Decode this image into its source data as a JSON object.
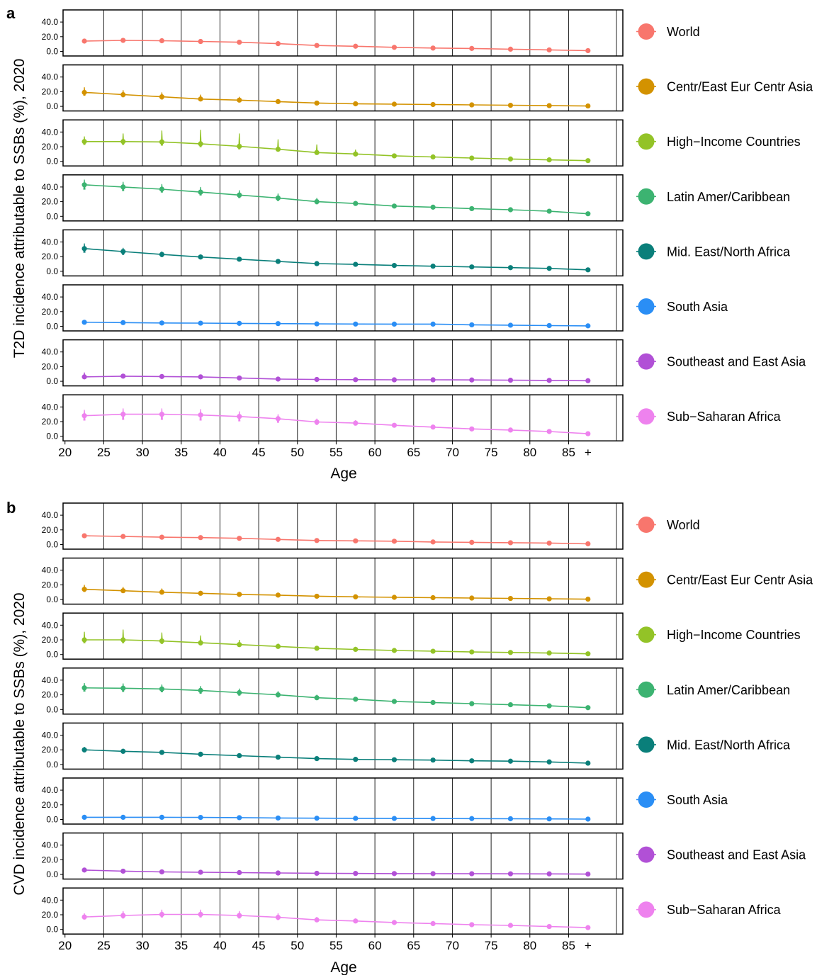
{
  "figure": {
    "panels": [
      "a",
      "b"
    ]
  },
  "colors": {
    "World": "#F8766D",
    "Centr/East Eur Centr Asia": "#D39200",
    "High-Income Countries": "#93C327",
    "Latin Amer/Caribbean": "#3CB371",
    "Mid. East/North Africa": "#0A7F7A",
    "South Asia": "#2A8EF5",
    "Southeast and East Asia": "#B150D6",
    "Sub-Saharan Africa": "#EE82EE"
  },
  "chart_data": [
    {
      "type": "line",
      "panel": "a",
      "ylabel": "T2D  incidence attributable to SSBs (%), 2020",
      "xlabel": "Age",
      "xticks": [
        "20",
        "25",
        "30",
        "35",
        "40",
        "45",
        "50",
        "55",
        "60",
        "65",
        "70",
        "75",
        "80",
        "85",
        "+"
      ],
      "yticks": [
        "0.0",
        "20.0",
        "40.0"
      ],
      "ylim": [
        0,
        50
      ],
      "x": [
        22.5,
        27.5,
        32.5,
        37.5,
        42.5,
        47.5,
        52.5,
        57.5,
        62.5,
        67.5,
        72.5,
        77.5,
        82.5,
        87.5
      ],
      "series": [
        {
          "name": "World",
          "values": [
            14,
            15,
            14.5,
            13.5,
            12.5,
            10.5,
            8,
            7,
            5.5,
            4.5,
            4,
            3,
            2,
            1
          ],
          "upper": [
            15.5,
            16.5,
            16,
            15,
            14,
            12,
            9.5,
            8,
            6.5,
            5.5,
            4.8,
            3.8,
            2.8,
            1.6
          ],
          "lower": [
            12.5,
            13.5,
            13,
            12,
            11,
            9,
            6.8,
            6,
            4.6,
            3.7,
            3.2,
            2.4,
            1.4,
            0.6
          ]
        },
        {
          "name": "Centr/East Eur Centr Asia",
          "values": [
            19,
            16,
            13,
            10,
            8.5,
            6.5,
            4.5,
            3.5,
            3,
            2.5,
            2,
            1.5,
            1,
            0.5
          ],
          "upper": [
            26,
            22,
            19,
            16,
            13,
            9,
            6,
            5,
            4,
            3.2,
            2.6,
            2,
            1.5,
            0.8
          ],
          "lower": [
            15,
            13,
            10,
            8,
            6.5,
            5,
            3.5,
            2.8,
            2.4,
            2,
            1.5,
            1.1,
            0.6,
            0.2
          ]
        },
        {
          "name": "High-Income Countries",
          "values": [
            27,
            27,
            26.5,
            24,
            20.5,
            16.5,
            12,
            10,
            7.5,
            6,
            4.5,
            3.2,
            2,
            1
          ],
          "upper": [
            34,
            38,
            42,
            43,
            38,
            30,
            23,
            16,
            10,
            8,
            6,
            4.5,
            3,
            1.6
          ],
          "lower": [
            23,
            23,
            22,
            20,
            17,
            14,
            10,
            8,
            6.2,
            5,
            3.7,
            2.6,
            1.5,
            0.6
          ]
        },
        {
          "name": "Latin Amer/Caribbean",
          "values": [
            43,
            40,
            37,
            33,
            29,
            25,
            20,
            17.5,
            14,
            12.5,
            10.5,
            9,
            7,
            3.5
          ],
          "upper": [
            50,
            47,
            44,
            40,
            35.5,
            31,
            25,
            21,
            16.5,
            14.5,
            12,
            10.5,
            8.2,
            4.5
          ],
          "lower": [
            37,
            35,
            33,
            29,
            25.5,
            21.5,
            17,
            15,
            12.2,
            11,
            9.2,
            7.8,
            6,
            2.8
          ]
        },
        {
          "name": "Mid. East/North Africa",
          "values": [
            31,
            27,
            23,
            19.5,
            16.5,
            13.5,
            10.5,
            9.5,
            8,
            7,
            6,
            5,
            4,
            2
          ],
          "upper": [
            38,
            32,
            27,
            23,
            19.5,
            16,
            12.2,
            10.8,
            9,
            7.8,
            6.8,
            5.7,
            4.6,
            2.5
          ],
          "lower": [
            26,
            23,
            20,
            17,
            14,
            11.5,
            9,
            8.3,
            7,
            6.2,
            5.3,
            4.4,
            3.4,
            1.6
          ]
        },
        {
          "name": "South Asia",
          "values": [
            5.5,
            5,
            4.5,
            4.3,
            4,
            3.7,
            3.3,
            3.1,
            3,
            3,
            2,
            1.5,
            1,
            0.6
          ],
          "upper": [
            6.5,
            6,
            5.5,
            5.2,
            4.8,
            4.4,
            4,
            3.7,
            3.6,
            3.6,
            2.5,
            1.9,
            1.3,
            0.9
          ],
          "lower": [
            4.6,
            4.2,
            3.8,
            3.6,
            3.3,
            3.1,
            2.7,
            2.6,
            2.5,
            2.5,
            1.6,
            1.1,
            0.7,
            0.4
          ]
        },
        {
          "name": "Southeast and East Asia",
          "values": [
            6,
            7,
            6.5,
            6,
            4.5,
            3,
            2.5,
            2.2,
            2,
            2,
            1.8,
            1.5,
            1.2,
            0.8
          ],
          "upper": [
            12,
            9,
            8,
            7.5,
            6,
            4.2,
            3.5,
            3,
            2.8,
            2.7,
            2.5,
            2,
            1.7,
            1.1
          ],
          "lower": [
            4,
            5.5,
            5.2,
            4.8,
            3.6,
            2.3,
            1.9,
            1.7,
            1.5,
            1.5,
            1.3,
            1.1,
            0.8,
            0.5
          ]
        },
        {
          "name": "Sub-Saharan Africa",
          "values": [
            28,
            30,
            30,
            29,
            27,
            24,
            19.5,
            18,
            15,
            12.5,
            10,
            8.5,
            6.5,
            3.5
          ],
          "upper": [
            36,
            38,
            38,
            37,
            34,
            30,
            24,
            22,
            18,
            15,
            12,
            10,
            7.7,
            4.3
          ],
          "lower": [
            22,
            23,
            23,
            22,
            21,
            19,
            16,
            15,
            12.4,
            10.4,
            8.4,
            7.1,
            5.4,
            2.8
          ]
        }
      ]
    },
    {
      "type": "line",
      "panel": "b",
      "ylabel": "CVD incidence attributable to SSBs (%), 2020",
      "xlabel": "Age",
      "xticks": [
        "20",
        "25",
        "30",
        "35",
        "40",
        "45",
        "50",
        "55",
        "60",
        "65",
        "70",
        "75",
        "80",
        "85",
        "+"
      ],
      "yticks": [
        "0.0",
        "20.0",
        "40.0"
      ],
      "ylim": [
        0,
        50
      ],
      "x": [
        22.5,
        27.5,
        32.5,
        37.5,
        42.5,
        47.5,
        52.5,
        57.5,
        62.5,
        67.5,
        72.5,
        77.5,
        82.5,
        87.5
      ],
      "series": [
        {
          "name": "World",
          "values": [
            12,
            11,
            10,
            9.5,
            8.5,
            7,
            5.5,
            5,
            4.5,
            3.5,
            3,
            2.5,
            2,
            1
          ],
          "upper": [
            13.5,
            12.5,
            11.5,
            11,
            9.8,
            8.2,
            6.5,
            5.9,
            5.3,
            4.2,
            3.6,
            3,
            2.4,
            1.3
          ],
          "lower": [
            10.8,
            9.8,
            8.8,
            8.3,
            7.4,
            6,
            4.7,
            4.3,
            3.8,
            2.9,
            2.5,
            2.1,
            1.6,
            0.7
          ]
        },
        {
          "name": "Centr/East Eur Centr Asia",
          "values": [
            14,
            12,
            10,
            8.5,
            7,
            6,
            4.5,
            3.7,
            3,
            2.5,
            2,
            1.5,
            1,
            0.5
          ],
          "upper": [
            20,
            17,
            15,
            12,
            10,
            8.5,
            6,
            4.8,
            3.8,
            3.1,
            2.5,
            1.9,
            1.3,
            0.8
          ],
          "lower": [
            11,
            9.5,
            8,
            6.8,
            5.6,
            4.8,
            3.6,
            3,
            2.4,
            2,
            1.6,
            1.1,
            0.7,
            0.2
          ]
        },
        {
          "name": "High-Income Countries",
          "values": [
            20,
            20,
            18.5,
            16,
            13.5,
            11,
            8.5,
            7,
            5.5,
            4.5,
            3.5,
            2.8,
            2,
            1
          ],
          "upper": [
            31,
            34,
            30,
            26,
            20,
            15,
            11,
            9,
            7,
            5.6,
            4.5,
            3.5,
            2.6,
            1.4
          ],
          "lower": [
            16,
            16,
            15,
            13,
            11,
            9,
            7,
            5.8,
            4.6,
            3.7,
            2.9,
            2.3,
            1.6,
            0.7
          ]
        },
        {
          "name": "Latin Amer/Caribbean",
          "values": [
            29.5,
            29,
            28,
            26,
            23,
            20,
            16,
            14,
            11,
            9.5,
            8,
            6.5,
            5,
            2.5
          ],
          "upper": [
            36,
            35.5,
            34,
            32,
            28.5,
            25,
            20,
            17,
            13.5,
            11.5,
            9.6,
            7.8,
            6,
            3.2
          ],
          "lower": [
            25,
            24.5,
            24,
            22,
            19.5,
            17,
            13.5,
            12,
            9.4,
            8.1,
            6.8,
            5.5,
            4.2,
            2
          ]
        },
        {
          "name": "Mid. East/North Africa",
          "values": [
            20,
            18,
            16.5,
            14,
            12,
            10,
            8,
            7,
            6.5,
            6,
            5,
            4.5,
            3.5,
            1.8
          ],
          "upper": [
            24,
            21.5,
            19.5,
            16.8,
            14.4,
            12,
            9.6,
            8.4,
            7.7,
            7,
            5.9,
            5.3,
            4.1,
            2.2
          ],
          "lower": [
            17,
            15.3,
            14,
            11.9,
            10.2,
            8.5,
            6.8,
            6,
            5.5,
            5.1,
            4.3,
            3.8,
            3,
            1.5
          ]
        },
        {
          "name": "South Asia",
          "values": [
            3,
            3,
            3,
            2.8,
            2.5,
            2,
            1.7,
            1.5,
            1.4,
            1.3,
            1.2,
            1,
            0.8,
            0.5
          ],
          "upper": [
            3.8,
            3.8,
            3.8,
            3.5,
            3.2,
            2.6,
            2.2,
            2,
            1.8,
            1.7,
            1.6,
            1.3,
            1.1,
            0.7
          ],
          "lower": [
            2.4,
            2.4,
            2.4,
            2.2,
            2,
            1.6,
            1.3,
            1.2,
            1.1,
            1,
            0.9,
            0.8,
            0.6,
            0.3
          ]
        },
        {
          "name": "Southeast and East Asia",
          "values": [
            6,
            4.5,
            3.5,
            3,
            2.5,
            2,
            1.6,
            1.4,
            1.2,
            1.1,
            1,
            0.9,
            0.8,
            0.5
          ],
          "upper": [
            7.2,
            5.6,
            4.3,
            3.7,
            3.1,
            2.5,
            2,
            1.8,
            1.5,
            1.4,
            1.3,
            1.2,
            1,
            0.7
          ],
          "lower": [
            5,
            3.7,
            2.9,
            2.5,
            2,
            1.6,
            1.3,
            1.1,
            0.9,
            0.9,
            0.8,
            0.7,
            0.6,
            0.3
          ]
        },
        {
          "name": "Sub-Saharan Africa",
          "values": [
            17,
            19,
            20.5,
            20.5,
            19,
            16.5,
            13,
            11.5,
            9.5,
            8,
            6.5,
            5.5,
            4,
            2.5
          ],
          "upper": [
            22,
            25,
            27,
            27,
            25,
            22,
            17,
            15,
            12,
            10,
            8,
            6.8,
            5,
            3.1
          ],
          "lower": [
            14,
            15.5,
            17,
            17,
            15.5,
            13.5,
            10.8,
            9.5,
            8,
            6.7,
            5.4,
            4.6,
            3.3,
            2
          ]
        }
      ]
    }
  ]
}
